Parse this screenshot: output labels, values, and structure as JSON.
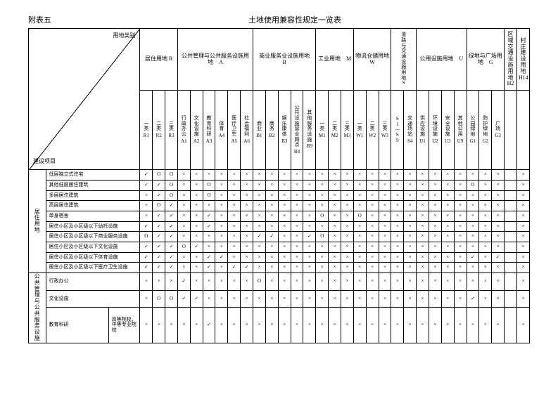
{
  "annex": "附表五",
  "title": "土地使用兼容性规定一览表",
  "diag_top": "用地类别",
  "diag_bottom": "建设项目",
  "main_left": "用地\n类别",
  "groups": [
    {
      "label": "居住用地 R",
      "span": 3
    },
    {
      "label": "公共管理与公共服务设施用地　A",
      "span": 6
    },
    {
      "label": "商业服务业设施用地　B",
      "span": 5
    },
    {
      "label": "工业用地　M",
      "span": 3
    },
    {
      "label": "物流仓储用地　W",
      "span": 3
    },
    {
      "label": "道路与交通设施用地 S",
      "span": 2
    },
    {
      "label": "公用设施用地　U",
      "span": 4
    },
    {
      "label": "绿地与广场用地　G",
      "span": 3
    },
    {
      "label": "区域交通设施用地 H2",
      "span": 1
    },
    {
      "label": "村庄建设用地 H14",
      "span": 1
    }
  ],
  "subcols": [
    {
      "t": "一类",
      "c": "R1"
    },
    {
      "t": "二类",
      "c": "R2"
    },
    {
      "t": "三类",
      "c": "R3"
    },
    {
      "t": "行政办公",
      "c": "A1"
    },
    {
      "t": "文化设施",
      "c": "A2"
    },
    {
      "t": "教育科研",
      "c": "A3"
    },
    {
      "t": "体育",
      "c": "A4"
    },
    {
      "t": "医疗卫生",
      "c": "A5"
    },
    {
      "t": "社会福利",
      "c": "A6"
    },
    {
      "t": "商业",
      "c": "B1"
    },
    {
      "t": "商务",
      "c": "B2"
    },
    {
      "t": "娱乐康体",
      "c": "B3"
    },
    {
      "t": "公共设施营业网点",
      "c": "B4"
    },
    {
      "t": "其他服务设施",
      "c": "B9"
    },
    {
      "t": "一类",
      "c": "M1"
    },
    {
      "t": "二类",
      "c": "M2"
    },
    {
      "t": "三类",
      "c": "M3"
    },
    {
      "t": "一类",
      "c": "W1"
    },
    {
      "t": "二类",
      "c": "W2"
    },
    {
      "t": "三类",
      "c": "W3"
    },
    {
      "t": "S1—S9",
      "c": ""
    },
    {
      "t": "交通场站",
      "c": "S4"
    },
    {
      "t": "供应设施",
      "c": "U1"
    },
    {
      "t": "环境设施",
      "c": "U2"
    },
    {
      "t": "安全设施",
      "c": "U3"
    },
    {
      "t": "其他公用",
      "c": "U9"
    },
    {
      "t": "公园绿地",
      "c": "G1"
    },
    {
      "t": "防护绿地",
      "c": "G2"
    },
    {
      "t": "广场",
      "c": "G3"
    },
    {
      "t": "",
      "c": ""
    },
    {
      "t": "",
      "c": ""
    }
  ],
  "row_categories": [
    {
      "label": "居住用地",
      "rows": [
        {
          "label": "低层独立式住宅",
          "g1": "",
          "g2": "",
          "cells": [
            "✓",
            "O",
            "O",
            "×",
            "×",
            "×",
            "×",
            "×",
            "×",
            "×",
            "×",
            "×",
            "×",
            "×",
            "×",
            "×",
            "×",
            "×",
            "×",
            "×",
            "×",
            "×",
            "×",
            "×",
            "×",
            "×",
            "×",
            "×",
            "×",
            "",
            "×"
          ]
        },
        {
          "label": "其他低层居住建筑",
          "g1": "",
          "g2": "",
          "cells": [
            "✓",
            "✓",
            "O",
            "×",
            "×",
            "O",
            "×",
            "×",
            "×",
            "×",
            "×",
            "×",
            "×",
            "×",
            "×",
            "×",
            "×",
            "×",
            "×",
            "×",
            "×",
            "×",
            "×",
            "×",
            "×",
            "×",
            "O",
            "×",
            "×",
            "",
            "×"
          ]
        },
        {
          "label": "多层居住建筑",
          "g1": "",
          "g2": "",
          "cells": [
            "×",
            "✓",
            "O",
            "×",
            "×",
            "O",
            "×",
            "×",
            "×",
            "×",
            "×",
            "×",
            "×",
            "×",
            "×",
            "×",
            "×",
            "×",
            "×",
            "×",
            "×",
            "×",
            "×",
            "×",
            "×",
            "×",
            "×",
            "×",
            "×",
            "",
            "×"
          ]
        },
        {
          "label": "高层居住建筑",
          "g1": "",
          "g2": "",
          "cells": [
            "×",
            "O",
            "✓",
            "×",
            "×",
            "×",
            "×",
            "×",
            "×",
            "×",
            "×",
            "×",
            "×",
            "×",
            "×",
            "×",
            "×",
            "×",
            "×",
            "×",
            "×",
            "×",
            "×",
            "×",
            "×",
            "×",
            "×",
            "×",
            "×",
            "",
            "×"
          ]
        },
        {
          "label": "单身宿舍",
          "g1": "",
          "g2": "",
          "cells": [
            "×",
            "✓",
            "✓",
            "×",
            "×",
            "✓",
            "×",
            "×",
            "×",
            "×",
            "×",
            "×",
            "×",
            "×",
            "O",
            "×",
            "×",
            "O",
            "×",
            "×",
            "×",
            "×",
            "×",
            "×",
            "×",
            "×",
            "×",
            "×",
            "×",
            "",
            "×"
          ]
        },
        {
          "label": "居住小区及小区级以下幼托设施",
          "g1": "",
          "g2": "",
          "cells": [
            "✓",
            "✓",
            "✓",
            "×",
            "×",
            "✓",
            "×",
            "×",
            "×",
            "×",
            "×",
            "×",
            "×",
            "×",
            "×",
            "×",
            "×",
            "×",
            "×",
            "×",
            "×",
            "×",
            "×",
            "×",
            "×",
            "×",
            "×",
            "×",
            "×",
            "",
            "×"
          ]
        },
        {
          "label": "居住小区及小区级以下商业服务设施",
          "g1": "",
          "g2": "",
          "cells": [
            "O",
            "✓",
            "✓",
            "×",
            "×",
            "×",
            "×",
            "×",
            "×",
            "✓",
            "✓",
            "×",
            "×",
            "✓",
            "O",
            "×",
            "×",
            "×",
            "×",
            "×",
            "×",
            "×",
            "×",
            "×",
            "×",
            "×",
            "×",
            "×",
            "×",
            "",
            "×"
          ]
        },
        {
          "label": "居住小区及小区级以下文化设施",
          "g1": "",
          "g2": "",
          "cells": [
            "✓",
            "✓",
            "✓",
            "O",
            "✓",
            "×",
            "×",
            "×",
            "×",
            "×",
            "×",
            "×",
            "×",
            "×",
            "×",
            "×",
            "×",
            "×",
            "×",
            "×",
            "×",
            "×",
            "×",
            "×",
            "×",
            "×",
            "×",
            "×",
            "×",
            "",
            "×"
          ]
        },
        {
          "label": "居住小区及小区级以下体育设施",
          "g1": "",
          "g2": "",
          "cells": [
            "✓",
            "✓",
            "✓",
            "×",
            "×",
            "✓",
            "✓",
            "×",
            "×",
            "×",
            "×",
            "×",
            "×",
            "×",
            "×",
            "×",
            "×",
            "×",
            "×",
            "×",
            "×",
            "×",
            "×",
            "×",
            "×",
            "×",
            "✓",
            "×",
            "✓",
            "",
            "×"
          ]
        },
        {
          "label": "居住小区及小区级以下医疗卫生设施",
          "g1": "",
          "g2": "",
          "cells": [
            "✓",
            "✓",
            "✓",
            "×",
            "×",
            "✓",
            "×",
            "✓",
            "✓",
            "×",
            "×",
            "×",
            "×",
            "×",
            "×",
            "×",
            "×",
            "×",
            "×",
            "×",
            "×",
            "×",
            "×",
            "×",
            "×",
            "×",
            "×",
            "×",
            "×",
            "",
            "×"
          ]
        }
      ]
    },
    {
      "label": "公共管理与公共服务设施",
      "rows": [
        {
          "label": "行政办公",
          "g1": "",
          "g2": "",
          "cells": [
            "×",
            "×",
            "×",
            "✓",
            "×",
            "×",
            "×",
            "×",
            "×",
            "O",
            "×",
            "×",
            "×",
            "×",
            "×",
            "×",
            "×",
            "×",
            "×",
            "×",
            "×",
            "×",
            "×",
            "×",
            "×",
            "×",
            "×",
            "×",
            "×",
            "",
            "×"
          ]
        },
        {
          "label": "文化设施",
          "g1": "",
          "g2": "",
          "cells": [
            "×",
            "O",
            "O",
            "✓",
            "✓",
            "×",
            "×",
            "×",
            "×",
            "×",
            "×",
            "×",
            "×",
            "×",
            "×",
            "×",
            "×",
            "×",
            "×",
            "×",
            "×",
            "×",
            "×",
            "×",
            "×",
            "×",
            "✓",
            "×",
            "×",
            "",
            "×"
          ]
        },
        {
          "label": "教育科研",
          "g1": "高等院校、中等专业院校",
          "g2": "",
          "cells": [
            "×",
            "×",
            "×",
            "×",
            "×",
            "✓",
            "×",
            "×",
            "×",
            "×",
            "×",
            "×",
            "×",
            "×",
            "×",
            "×",
            "×",
            "×",
            "×",
            "×",
            "×",
            "×",
            "×",
            "×",
            "×",
            "×",
            "×",
            "×",
            "×",
            "",
            "×"
          ]
        }
      ]
    }
  ]
}
